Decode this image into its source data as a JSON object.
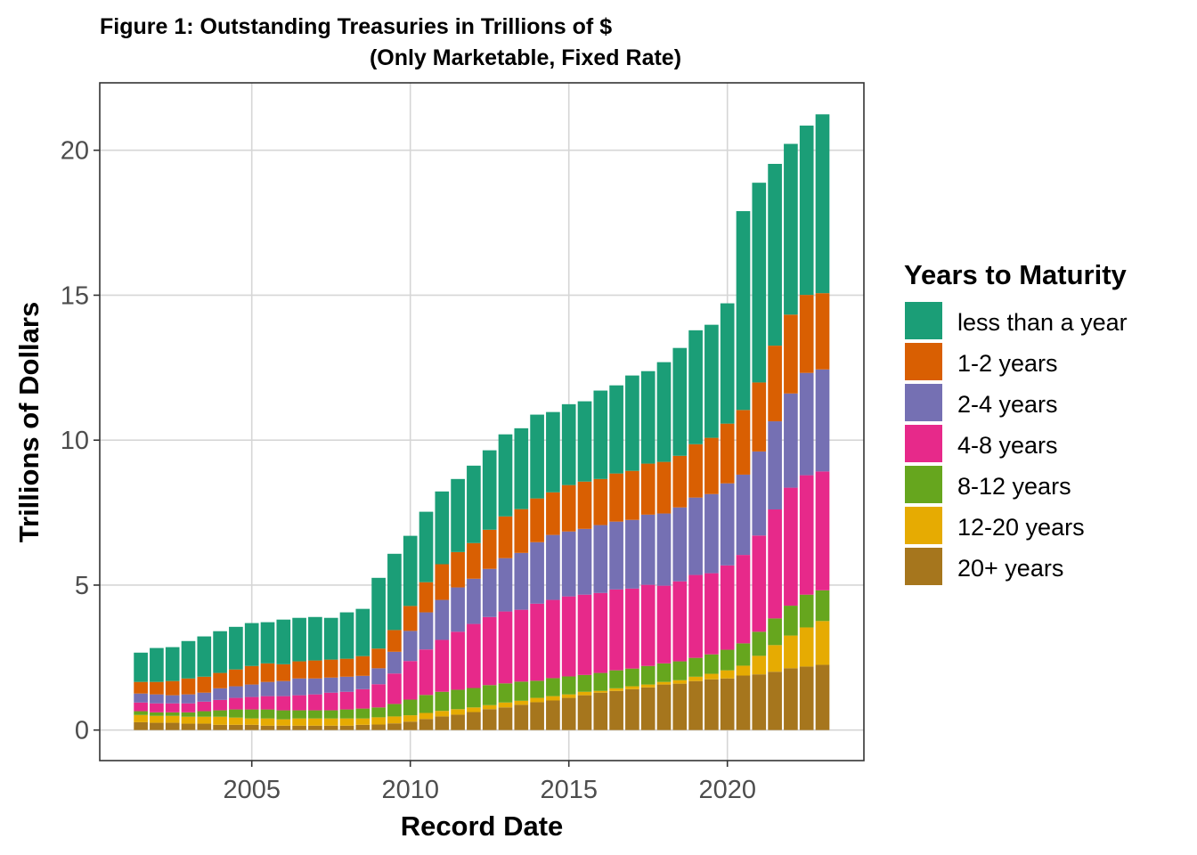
{
  "chart_data": {
    "type": "bar",
    "stacked": true,
    "title": "Figure 1: Outstanding Treasuries in Trillions of $",
    "subtitle": "(Only Marketable, Fixed Rate)",
    "xlabel": "Record Date",
    "ylabel": "Trillions of Dollars",
    "xlim": [
      2000.8,
      2024.1
    ],
    "ylim": [
      -1.0,
      22.3
    ],
    "x_ticks": [
      2005,
      2010,
      2015,
      2020
    ],
    "x_tick_labels": [
      "2005",
      "2010",
      "2015",
      "2020"
    ],
    "y_ticks": [
      0,
      5,
      10,
      15,
      20
    ],
    "y_tick_labels": [
      "0",
      "5",
      "10",
      "15",
      "20"
    ],
    "grid": true,
    "legend": {
      "title": "Years to Maturity",
      "position": "right"
    },
    "x": [
      2001.5,
      2002.0,
      2002.5,
      2003.0,
      2003.5,
      2004.0,
      2004.5,
      2005.0,
      2005.5,
      2006.0,
      2006.5,
      2007.0,
      2007.5,
      2008.0,
      2008.5,
      2009.0,
      2009.5,
      2010.0,
      2010.5,
      2011.0,
      2011.5,
      2012.0,
      2012.5,
      2013.0,
      2013.5,
      2014.0,
      2014.5,
      2015.0,
      2015.5,
      2016.0,
      2016.5,
      2017.0,
      2017.5,
      2018.0,
      2018.5,
      2019.0,
      2019.5,
      2020.0,
      2020.5,
      2021.0,
      2021.5,
      2022.0,
      2022.5,
      2023.0
    ],
    "series": [
      {
        "name": "less than a year",
        "color": "#1B9E77",
        "values": [
          1.01,
          1.17,
          1.17,
          1.29,
          1.39,
          1.44,
          1.47,
          1.48,
          1.42,
          1.54,
          1.5,
          1.5,
          1.44,
          1.6,
          1.63,
          2.44,
          2.63,
          2.42,
          2.43,
          2.51,
          2.52,
          2.67,
          2.74,
          2.83,
          2.79,
          2.89,
          2.77,
          2.79,
          2.77,
          3.05,
          3.04,
          3.29,
          3.19,
          3.44,
          3.72,
          3.93,
          3.9,
          4.15,
          6.86,
          6.89,
          6.27,
          5.89,
          5.84,
          6.17
        ]
      },
      {
        "name": "1-2 years",
        "color": "#D95F02",
        "values": [
          0.4,
          0.43,
          0.49,
          0.55,
          0.55,
          0.53,
          0.58,
          0.64,
          0.64,
          0.58,
          0.59,
          0.62,
          0.62,
          0.62,
          0.68,
          0.68,
          0.75,
          0.86,
          1.04,
          1.23,
          1.22,
          1.23,
          1.35,
          1.44,
          1.51,
          1.51,
          1.47,
          1.6,
          1.63,
          1.59,
          1.66,
          1.69,
          1.76,
          1.78,
          1.78,
          1.84,
          1.94,
          2.06,
          2.23,
          2.38,
          2.61,
          2.72,
          2.69,
          2.63
        ]
      },
      {
        "name": "2-4 years",
        "color": "#7570B3",
        "values": [
          0.31,
          0.31,
          0.28,
          0.31,
          0.31,
          0.4,
          0.4,
          0.43,
          0.49,
          0.52,
          0.58,
          0.55,
          0.52,
          0.52,
          0.46,
          0.55,
          0.75,
          1.04,
          1.28,
          1.38,
          1.53,
          1.56,
          1.66,
          1.84,
          1.96,
          2.12,
          2.24,
          2.24,
          2.27,
          2.34,
          2.34,
          2.37,
          2.42,
          2.49,
          2.55,
          2.67,
          2.73,
          2.83,
          2.77,
          2.9,
          3.04,
          3.25,
          3.53,
          3.52
        ]
      },
      {
        "name": "4-8 years",
        "color": "#E7298A",
        "values": [
          0.3,
          0.31,
          0.31,
          0.31,
          0.33,
          0.36,
          0.4,
          0.43,
          0.46,
          0.49,
          0.52,
          0.55,
          0.61,
          0.61,
          0.67,
          0.8,
          1.05,
          1.33,
          1.57,
          1.79,
          2.0,
          2.21,
          2.35,
          2.48,
          2.48,
          2.66,
          2.7,
          2.76,
          2.77,
          2.76,
          2.79,
          2.76,
          2.8,
          2.68,
          2.76,
          2.86,
          2.8,
          2.91,
          3.05,
          3.32,
          3.76,
          4.07,
          4.12,
          4.1
        ]
      },
      {
        "name": "8-12 years",
        "color": "#66A61E",
        "values": [
          0.13,
          0.12,
          0.12,
          0.15,
          0.19,
          0.22,
          0.28,
          0.31,
          0.31,
          0.31,
          0.28,
          0.28,
          0.28,
          0.31,
          0.34,
          0.34,
          0.43,
          0.54,
          0.62,
          0.66,
          0.67,
          0.67,
          0.69,
          0.66,
          0.66,
          0.59,
          0.62,
          0.62,
          0.58,
          0.62,
          0.62,
          0.61,
          0.64,
          0.64,
          0.65,
          0.65,
          0.67,
          0.71,
          0.77,
          0.83,
          0.92,
          1.03,
          1.13,
          1.06
        ]
      },
      {
        "name": "12-20 years",
        "color": "#E6AB02",
        "values": [
          0.25,
          0.24,
          0.24,
          0.24,
          0.24,
          0.28,
          0.25,
          0.22,
          0.25,
          0.22,
          0.25,
          0.25,
          0.25,
          0.25,
          0.22,
          0.25,
          0.24,
          0.22,
          0.21,
          0.19,
          0.19,
          0.16,
          0.14,
          0.17,
          0.14,
          0.15,
          0.15,
          0.12,
          0.12,
          0.06,
          0.09,
          0.1,
          0.1,
          0.09,
          0.12,
          0.15,
          0.19,
          0.28,
          0.34,
          0.64,
          0.92,
          1.13,
          1.35,
          1.51
        ]
      },
      {
        "name": "20+ years",
        "color": "#A6761D",
        "values": [
          0.27,
          0.25,
          0.25,
          0.22,
          0.22,
          0.18,
          0.18,
          0.18,
          0.15,
          0.15,
          0.15,
          0.15,
          0.15,
          0.15,
          0.18,
          0.19,
          0.23,
          0.29,
          0.38,
          0.47,
          0.53,
          0.62,
          0.72,
          0.78,
          0.87,
          0.96,
          1.02,
          1.11,
          1.2,
          1.29,
          1.35,
          1.41,
          1.47,
          1.57,
          1.6,
          1.69,
          1.75,
          1.78,
          1.88,
          1.92,
          2.01,
          2.13,
          2.19,
          2.25
        ]
      }
    ],
    "stack_order_bottom_to_top": [
      "20+ years",
      "12-20 years",
      "8-12 years",
      "4-8 years",
      "2-4 years",
      "1-2 years",
      "less than a year"
    ],
    "legend_order": [
      "less than a year",
      "1-2 years",
      "2-4 years",
      "4-8 years",
      "8-12 years",
      "12-20 years",
      "20+ years"
    ],
    "bar_width_years": 0.44
  }
}
